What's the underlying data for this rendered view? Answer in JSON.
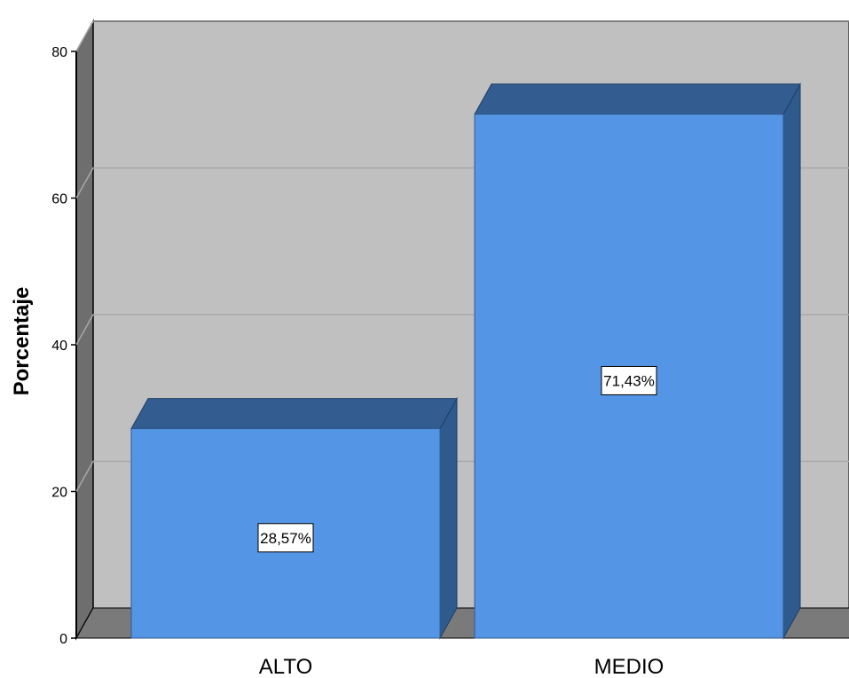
{
  "chart_data": {
    "type": "bar",
    "style": "3d",
    "categories": [
      "ALTO",
      "MEDIO"
    ],
    "values": [
      28.57,
      71.43
    ],
    "data_labels": [
      "28,57%",
      "71,43%"
    ],
    "title": "",
    "xlabel": "",
    "ylabel": "Porcentaje",
    "ylim": [
      0,
      80
    ],
    "yticks": [
      0,
      20,
      40,
      60,
      80
    ],
    "grid": true,
    "legend": "none",
    "colors": {
      "bar_front": "#5595E5",
      "bar_top": "#335D91",
      "bar_side": "#2E5A8E",
      "plot_back": "#C0C0C0",
      "floor": "#7A7A7A",
      "left_wall": "#6E6E6E",
      "gridline": "#A8A8A8"
    }
  }
}
